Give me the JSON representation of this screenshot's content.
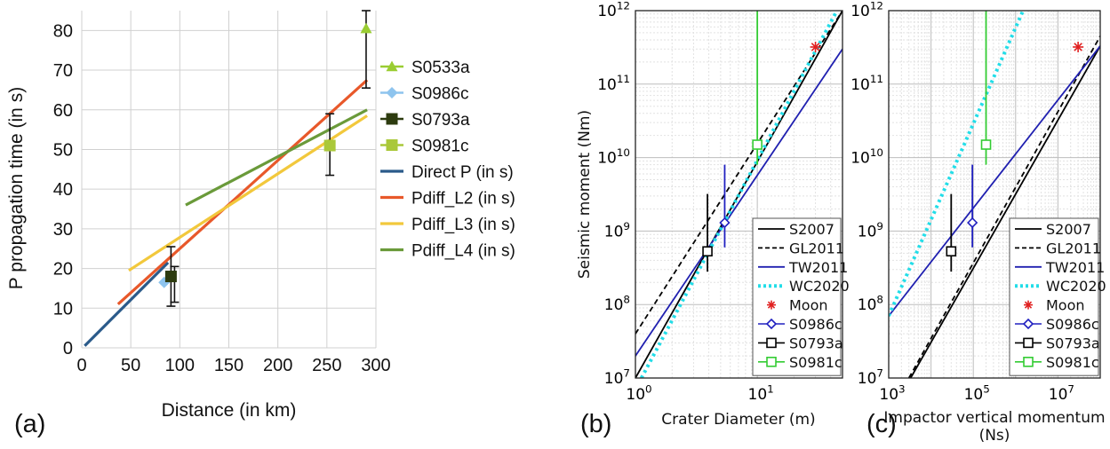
{
  "chart_data": [
    {
      "panel_label": "(a)",
      "type": "line",
      "xlabel": "Distance (in km)",
      "ylabel": "P propagation time (in s)",
      "xlim": [
        0,
        300
      ],
      "ylim": [
        0,
        85
      ],
      "xticks": [
        "0",
        "50",
        "100",
        "150",
        "200",
        "250",
        "300"
      ],
      "yticks": [
        "0",
        "10",
        "20",
        "30",
        "40",
        "50",
        "60",
        "70",
        "80"
      ],
      "grid": true,
      "legend_position": "right",
      "series": [
        {
          "name": "S0533a",
          "kind": "marker",
          "marker": "triangle",
          "color": "#9acd32",
          "x": [
            290
          ],
          "y": [
            80.5
          ],
          "err": [
            [
              65.5,
              85
            ]
          ]
        },
        {
          "name": "S0986c",
          "kind": "marker",
          "marker": "diamond",
          "color": "#8ec4ee",
          "x": [
            84
          ],
          "y": [
            16.5
          ],
          "err": []
        },
        {
          "name": "S0793a",
          "kind": "marker",
          "marker": "square",
          "color": "#2d3b0f",
          "x": [
            91
          ],
          "y": [
            18
          ],
          "err": [
            [
              10.5,
              25.5
            ],
            [
              11.5,
              20.5
            ]
          ]
        },
        {
          "name": "S0981c",
          "kind": "marker",
          "marker": "square",
          "color": "#aac83a",
          "x": [
            253
          ],
          "y": [
            51
          ],
          "err": [
            [
              43.5,
              59
            ]
          ]
        },
        {
          "name": "Direct P (in s)",
          "kind": "line",
          "color": "#2a5a8a",
          "x": [
            3,
            88
          ],
          "y": [
            0.5,
            21.5
          ]
        },
        {
          "name": "Pdiff_L2 (in s)",
          "kind": "line",
          "color": "#e8582a",
          "x": [
            37,
            291
          ],
          "y": [
            11,
            67.5
          ]
        },
        {
          "name": "Pdiff_L3 (in s)",
          "kind": "line",
          "color": "#f2c83c",
          "x": [
            48,
            291
          ],
          "y": [
            19.5,
            58.5
          ]
        },
        {
          "name": "Pdiff_L4 (in s)",
          "kind": "line",
          "color": "#6a9a3a",
          "x": [
            106,
            291
          ],
          "y": [
            36,
            60
          ]
        }
      ]
    },
    {
      "panel_label": "(b)",
      "type": "line",
      "xlabel": "Crater Diameter (m)",
      "ylabel": "Seismic moment (Nm)",
      "xscale": "log",
      "yscale": "log",
      "xlim": [
        1,
        50
      ],
      "ylim": [
        10000000,
        1000000000000
      ],
      "xticks": [
        {
          "base": "10",
          "exp": "0"
        },
        {
          "base": "10",
          "exp": "1"
        }
      ],
      "yticks": [
        {
          "base": "10",
          "exp": "7"
        },
        {
          "base": "10",
          "exp": "8"
        },
        {
          "base": "10",
          "exp": "9"
        },
        {
          "base": "10",
          "exp": "10"
        },
        {
          "base": "10",
          "exp": "11"
        },
        {
          "base": "10",
          "exp": "12"
        }
      ],
      "grid": true,
      "legend_position": "bottom-right",
      "legend": [
        {
          "label": "S2007",
          "style": "solid",
          "color": "#000000"
        },
        {
          "label": "GL2011",
          "style": "dashed",
          "color": "#000000"
        },
        {
          "label": "TW2011",
          "style": "solid",
          "color": "#2020b0"
        },
        {
          "label": "WC2020",
          "style": "dotted",
          "color": "#22dde8"
        },
        {
          "label": "Moon",
          "style": "star",
          "color": "#e02020"
        },
        {
          "label": "S0986c",
          "style": "diamond",
          "color": "#2020c0"
        },
        {
          "label": "S0793a",
          "style": "square",
          "color": "#000000"
        },
        {
          "label": "S0981c",
          "style": "square",
          "color": "#33cc33"
        }
      ],
      "lines": [
        {
          "name": "S2007",
          "style": "solid",
          "color": "#000000",
          "x": [
            1,
            50
          ],
          "y": [
            10000000,
            1000000000000
          ]
        },
        {
          "name": "GL2011",
          "style": "dashed",
          "color": "#000000",
          "x": [
            1,
            50
          ],
          "y": [
            40000000,
            1000000000000
          ]
        },
        {
          "name": "TW2011",
          "style": "solid",
          "color": "#2020b0",
          "x": [
            1,
            50
          ],
          "y": [
            20000000,
            300000000000
          ]
        },
        {
          "name": "WC2020",
          "style": "dotted",
          "color": "#22dde8",
          "x": [
            1.12,
            45
          ],
          "y": [
            10000000,
            1000000000000
          ]
        }
      ],
      "points": [
        {
          "name": "S0986c",
          "marker": "diamond",
          "color": "#2020c0",
          "x": 5.4,
          "y": 1300000000,
          "err": [
            600000000,
            8000000000
          ]
        },
        {
          "name": "S0793a",
          "marker": "square",
          "color": "#000000",
          "x": 3.9,
          "y": 530000000,
          "err": [
            280000000,
            3200000000
          ]
        },
        {
          "name": "S0981c",
          "marker": "square",
          "color": "#33cc33",
          "x": 10,
          "y": 15000000000,
          "err": [
            8000000000,
            1000000000000
          ]
        },
        {
          "name": "Moon",
          "marker": "star",
          "color": "#e02020",
          "x": 30,
          "y": 320000000000,
          "err": []
        }
      ]
    },
    {
      "panel_label": "(c)",
      "type": "line",
      "xlabel": "Impactor vertical momentum (Ns)",
      "ylabel": "",
      "xscale": "log",
      "yscale": "log",
      "xlim": [
        1000,
        100000000
      ],
      "ylim": [
        10000000,
        1000000000000
      ],
      "xticks": [
        {
          "base": "10",
          "exp": "3"
        },
        {
          "base": "10",
          "exp": "5"
        },
        {
          "base": "10",
          "exp": "7"
        }
      ],
      "yticks": [
        {
          "base": "10",
          "exp": "7"
        },
        {
          "base": "10",
          "exp": "8"
        },
        {
          "base": "10",
          "exp": "9"
        },
        {
          "base": "10",
          "exp": "10"
        },
        {
          "base": "10",
          "exp": "11"
        },
        {
          "base": "10",
          "exp": "12"
        }
      ],
      "grid": true,
      "legend_position": "bottom-right",
      "legend": [
        {
          "label": "S2007",
          "style": "solid",
          "color": "#000000"
        },
        {
          "label": "GL2011",
          "style": "dashed",
          "color": "#000000"
        },
        {
          "label": "TW2011",
          "style": "solid",
          "color": "#2020b0"
        },
        {
          "label": "WC2020",
          "style": "dotted",
          "color": "#22dde8"
        },
        {
          "label": "Moon",
          "style": "star",
          "color": "#e02020"
        },
        {
          "label": "S0986c",
          "style": "diamond",
          "color": "#2020c0"
        },
        {
          "label": "S0793a",
          "style": "square",
          "color": "#000000"
        },
        {
          "label": "S0981c",
          "style": "square",
          "color": "#33cc33"
        }
      ],
      "lines": [
        {
          "name": "S2007",
          "style": "solid",
          "color": "#000000",
          "x": [
            3300,
            100000000
          ],
          "y": [
            10000000,
            330000000000
          ]
        },
        {
          "name": "GL2011",
          "style": "dashed",
          "color": "#000000",
          "x": [
            3000,
            100000000
          ],
          "y": [
            10000000,
            450000000000
          ]
        },
        {
          "name": "TW2011",
          "style": "solid",
          "color": "#2020b0",
          "x": [
            1000,
            100000000
          ],
          "y": [
            70000000,
            330000000000
          ]
        },
        {
          "name": "WC2020",
          "style": "dotted",
          "color": "#22dde8",
          "x": [
            1000,
            1500000
          ],
          "y": [
            70000000,
            1000000000000
          ]
        }
      ],
      "points": [
        {
          "name": "S0986c",
          "marker": "diamond",
          "color": "#2020c0",
          "x": 95000,
          "y": 1300000000,
          "err": [
            600000000,
            8000000000
          ]
        },
        {
          "name": "S0793a",
          "marker": "square",
          "color": "#000000",
          "x": 30000,
          "y": 530000000,
          "err": [
            280000000,
            3200000000
          ]
        },
        {
          "name": "S0981c",
          "marker": "square",
          "color": "#33cc33",
          "x": 200000,
          "y": 15000000000,
          "err": [
            8000000000,
            1000000000000
          ]
        },
        {
          "name": "Moon",
          "marker": "star",
          "color": "#e02020",
          "x": 30000000,
          "y": 320000000000,
          "err": []
        }
      ]
    }
  ]
}
